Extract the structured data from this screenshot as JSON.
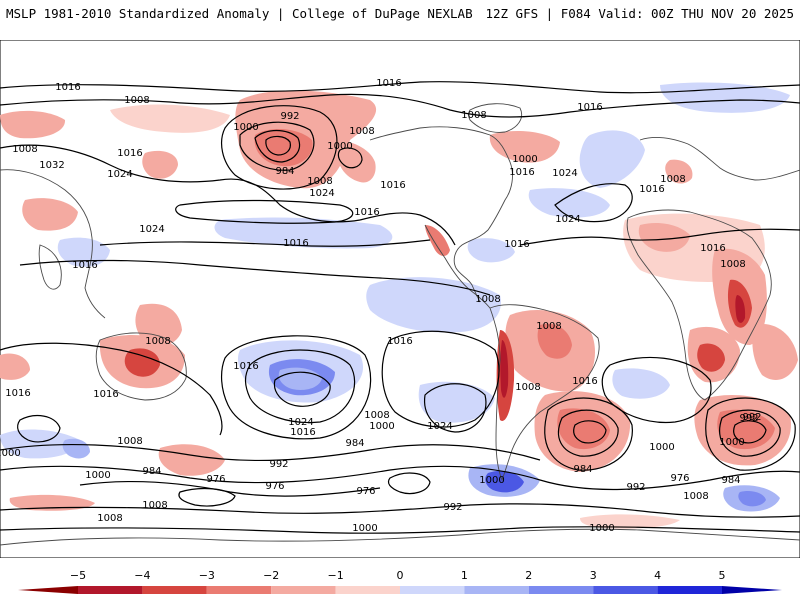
{
  "header": {
    "title_left": "MSLP 1981-2010 Standardized Anomaly | College of DuPage NEXLAB",
    "title_right": "12Z GFS | F084 Valid: 00Z THU NOV 20 2025"
  },
  "colors": {
    "neg5": "#b2182b",
    "neg4": "#d6453f",
    "neg3": "#ea7b72",
    "neg2": "#f4aaa1",
    "neg1": "#fbd3cc",
    "pos1": "#cfd7fb",
    "pos2": "#a8b5f5",
    "pos3": "#7b8af0",
    "pos4": "#4b58e4",
    "pos5": "#1f26d8",
    "contour": "#000000",
    "coast": "#4a4a4a"
  },
  "colorbar": {
    "ticks": [
      "−5",
      "−4",
      "−3",
      "−2",
      "−1",
      "0",
      "1",
      "2",
      "3",
      "4",
      "5"
    ]
  },
  "isobar_labels": [
    "1016",
    "1008",
    "1008",
    "1016",
    "1032",
    "1024",
    "1024",
    "1016",
    "992",
    "1000",
    "984",
    "1000",
    "1008",
    "1024",
    "1008",
    "1016",
    "1016",
    "1016",
    "1016",
    "1000",
    "1024",
    "1016",
    "1008",
    "1016",
    "1024",
    "1016",
    "1016",
    "1008",
    "1008",
    "1016",
    "1008",
    "1016",
    "1016",
    "1008",
    "1016",
    "1008",
    "1016",
    "1024",
    "1016",
    "1008",
    "1000",
    "1024",
    "1000",
    "984",
    "992",
    "1008",
    "1016",
    "1008",
    "1000",
    "984",
    "992",
    "1000",
    "976",
    "976",
    "984",
    "992",
    "976",
    "1008",
    "1000",
    "992",
    "1000",
    "992",
    "984",
    "976",
    "1008",
    "1000",
    "1008",
    "1000"
  ]
}
